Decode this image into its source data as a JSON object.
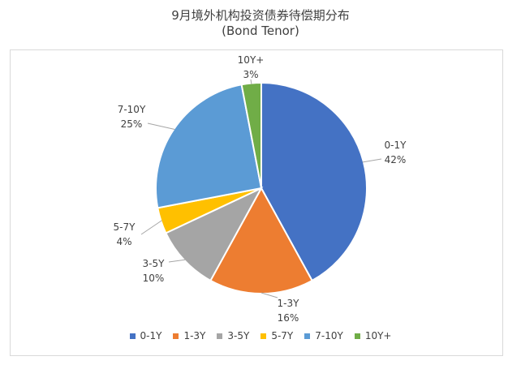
{
  "chart_data": {
    "type": "pie",
    "title": "9月境外机构投资债券待偿期分布",
    "subtitle": "(Bond Tenor)",
    "categories": [
      "0-1Y",
      "1-3Y",
      "3-5Y",
      "5-7Y",
      "7-10Y",
      "10Y+"
    ],
    "values": [
      42,
      16,
      10,
      4,
      25,
      3
    ],
    "value_labels": [
      "42%",
      "16%",
      "10%",
      "4%",
      "25%",
      "3%"
    ],
    "colors": [
      "#4472C4",
      "#ED7D31",
      "#A5A5A5",
      "#FFC000",
      "#5B9BD5",
      "#70AD47"
    ],
    "legend_position": "bottom"
  }
}
